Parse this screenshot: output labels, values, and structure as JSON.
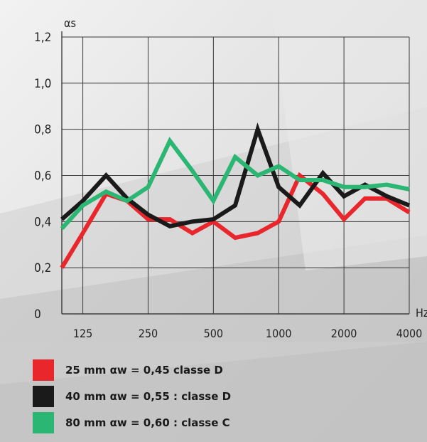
{
  "chart_data": {
    "type": "line",
    "ylabel": "αs",
    "xlabel": "Hz",
    "ylim": [
      0,
      1.2
    ],
    "y_ticks": [
      "0",
      "0,2",
      "0,4",
      "0,6",
      "0,8",
      "1,0",
      "1,2"
    ],
    "y_tick_values": [
      0,
      0.2,
      0.4,
      0.6,
      0.8,
      1.0,
      1.2
    ],
    "x_ticks": [
      "125",
      "250",
      "500",
      "1000",
      "2000",
      "4000"
    ],
    "x": [
      100,
      125,
      160,
      200,
      250,
      315,
      400,
      500,
      630,
      800,
      1000,
      1250,
      1600,
      2000,
      2500,
      3150,
      4000
    ],
    "grid": true,
    "series": [
      {
        "name": "25 mm αw = 0,45 classe D",
        "color": "#e8262b",
        "values": [
          0.2,
          0.35,
          0.52,
          0.49,
          0.41,
          0.41,
          0.35,
          0.4,
          0.33,
          0.35,
          0.4,
          0.6,
          0.52,
          0.41,
          0.5,
          0.5,
          0.44
        ]
      },
      {
        "name": "40 mm αw = 0,55 : classe D",
        "color": "#1a1a1a",
        "values": [
          0.41,
          0.49,
          0.6,
          0.5,
          0.43,
          0.38,
          0.4,
          0.41,
          0.47,
          0.8,
          0.55,
          0.47,
          0.61,
          0.51,
          0.56,
          0.51,
          0.47
        ]
      },
      {
        "name": "80 mm αw = 0,60 : classe C",
        "color": "#2bb673",
        "values": [
          0.37,
          0.47,
          0.53,
          0.49,
          0.55,
          0.75,
          0.62,
          0.49,
          0.68,
          0.6,
          0.64,
          0.58,
          0.58,
          0.55,
          0.55,
          0.56,
          0.54
        ]
      }
    ],
    "legend_position": "bottom"
  }
}
